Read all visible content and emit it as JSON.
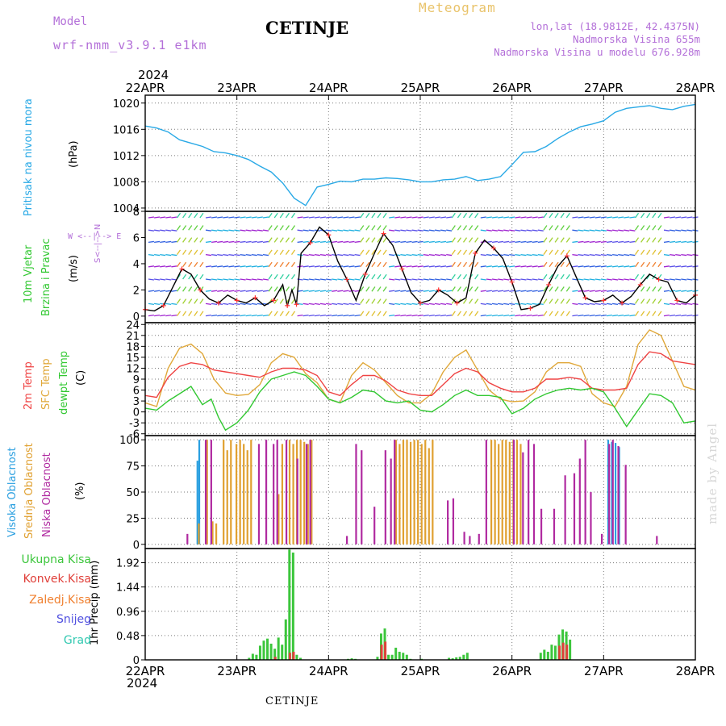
{
  "header": {
    "model_label": "Model",
    "model_name": "wrf-nmm_v3.9.1  e1km",
    "station": "CETINJE",
    "title": "Meteogram",
    "location": "lon,lat (18.9812E, 42.4375N)",
    "elevation": "Nadmorska Visina 655m",
    "model_elevation": "Nadmorska Visina u modelu 676.928m"
  },
  "footer": {
    "station": "CETINJE",
    "credit": "made by Angel"
  },
  "axis": {
    "year": "2024",
    "dates": [
      "22APR",
      "23APR",
      "24APR",
      "25APR",
      "26APR",
      "27APR",
      "28APR"
    ]
  },
  "colors": {
    "pressure": "#29a9e6",
    "temp": "#ef4444",
    "sfc": "#e0a83a",
    "dewpt": "#32c832",
    "high_cloud": "#2a9fe0",
    "mid_cloud": "#e0a030",
    "low_cloud": "#b02aa0",
    "total_precip": "#3cc63c",
    "convective": "#e0403a",
    "frozen": "#f08030",
    "snow": "#5050e0",
    "graupel": "#30c8b0",
    "ylab_pressure": "#29a9e6",
    "ylab_wind": "#32c832",
    "ylab_wind2": "#b36fd8"
  },
  "wind_compass": {
    "n": "N",
    "s": "S",
    "w": "W",
    "e": "E",
    "arrows": "<--|-->"
  },
  "charts": [
    {
      "name": "pressure",
      "type": "line",
      "ylabel": "Pritisak na nivou mora",
      "unit": "(hPa)",
      "ylim": [
        1003.5,
        1021.2
      ],
      "yticks": [
        1004,
        1008,
        1012,
        1016,
        1020
      ],
      "series": [
        {
          "color": "#29a9e6",
          "x": [
            0,
            0.125,
            0.25,
            0.375,
            0.5,
            0.625,
            0.75,
            0.875,
            1.0,
            1.125,
            1.25,
            1.375,
            1.5,
            1.625,
            1.75,
            1.875,
            2.0,
            2.125,
            2.25,
            2.375,
            2.5,
            2.625,
            2.75,
            2.875,
            3.0,
            3.125,
            3.25,
            3.375,
            3.5,
            3.625,
            3.75,
            3.875,
            4.0,
            4.125,
            4.25,
            4.375,
            4.5,
            4.625,
            4.75,
            4.875,
            5.0,
            5.125,
            5.25,
            5.375,
            5.5,
            5.625,
            5.75,
            5.875,
            6.0
          ],
          "y": [
            1016.5,
            1016.2,
            1015.6,
            1014.4,
            1013.9,
            1013.4,
            1012.6,
            1012.4,
            1012.0,
            1011.4,
            1010.4,
            1009.5,
            1007.8,
            1005.5,
            1004.4,
            1007.2,
            1007.6,
            1008.1,
            1008.0,
            1008.4,
            1008.4,
            1008.6,
            1008.5,
            1008.3,
            1008.0,
            1008.0,
            1008.3,
            1008.4,
            1008.8,
            1008.2,
            1008.4,
            1008.8,
            1010.6,
            1012.5,
            1012.6,
            1013.4,
            1014.6,
            1015.6,
            1016.4,
            1016.8,
            1017.3,
            1018.6,
            1019.2,
            1019.4,
            1019.6,
            1019.2,
            1019.0,
            1019.5,
            1019.8
          ]
        }
      ]
    },
    {
      "name": "wind",
      "type": "line",
      "ylabel": "10m Vjetar",
      "ylabel2": "Brzina i Pravac",
      "unit": "(m/s)",
      "ylim": [
        -0.5,
        8.0
      ],
      "yticks": [
        0,
        2,
        4,
        6,
        8
      ],
      "series": [
        {
          "color": "#000000",
          "x": [
            0,
            0.1,
            0.2,
            0.3,
            0.4,
            0.5,
            0.6,
            0.7,
            0.8,
            0.9,
            1.0,
            1.1,
            1.2,
            1.3,
            1.4,
            1.5,
            1.55,
            1.6,
            1.65,
            1.7,
            1.8,
            1.9,
            2.0,
            2.1,
            2.2,
            2.3,
            2.4,
            2.5,
            2.6,
            2.7,
            2.8,
            2.9,
            3.0,
            3.1,
            3.2,
            3.3,
            3.4,
            3.5,
            3.6,
            3.7,
            3.8,
            3.9,
            4.0,
            4.1,
            4.2,
            4.3,
            4.4,
            4.5,
            4.6,
            4.7,
            4.8,
            4.9,
            5.0,
            5.1,
            5.2,
            5.3,
            5.4,
            5.5,
            5.6,
            5.7,
            5.8,
            5.9,
            6.0
          ],
          "y": [
            0.5,
            0.4,
            0.8,
            2.2,
            3.6,
            3.2,
            2.0,
            1.3,
            1.0,
            1.6,
            1.2,
            1.0,
            1.4,
            0.8,
            1.2,
            2.4,
            0.8,
            2.0,
            0.9,
            4.8,
            5.6,
            6.8,
            6.2,
            4.2,
            2.8,
            1.2,
            3.2,
            4.8,
            6.3,
            5.4,
            3.6,
            1.8,
            1.0,
            1.2,
            2.0,
            1.6,
            1.0,
            1.4,
            4.8,
            5.8,
            5.2,
            4.4,
            2.6,
            0.5,
            0.6,
            0.9,
            2.4,
            3.8,
            4.6,
            3.0,
            1.4,
            1.1,
            1.2,
            1.6,
            1.0,
            1.5,
            2.4,
            3.2,
            2.8,
            2.6,
            1.2,
            1.0,
            1.6
          ]
        }
      ]
    },
    {
      "name": "temperature",
      "type": "line",
      "ylabel": "2m Temp",
      "ylabel2": "SFC Temp",
      "ylabel3": "dewpt Temp",
      "unit": "(C)",
      "ylim": [
        -6.5,
        24.5
      ],
      "yticks": [
        -6,
        -3,
        0,
        3,
        6,
        9,
        12,
        15,
        18,
        21,
        24
      ],
      "series": [
        {
          "color": "#e0a83a",
          "x": [
            0,
            0.125,
            0.25,
            0.375,
            0.5,
            0.625,
            0.75,
            0.875,
            1.0,
            1.125,
            1.25,
            1.375,
            1.5,
            1.625,
            1.75,
            1.875,
            2.0,
            2.125,
            2.25,
            2.375,
            2.5,
            2.625,
            2.75,
            2.875,
            3.0,
            3.125,
            3.25,
            3.375,
            3.5,
            3.625,
            3.75,
            3.875,
            4.0,
            4.125,
            4.25,
            4.375,
            4.5,
            4.625,
            4.75,
            4.875,
            5.0,
            5.125,
            5.25,
            5.375,
            5.5,
            5.625,
            5.75,
            5.875,
            6.0
          ],
          "y": [
            2.5,
            1.5,
            12.0,
            17.5,
            18.6,
            16.0,
            9.0,
            5.2,
            4.5,
            4.8,
            7.5,
            13.5,
            16.0,
            15.0,
            10.5,
            8.0,
            3.5,
            2.5,
            10.0,
            13.5,
            11.5,
            8.0,
            4.5,
            2.5,
            2.5,
            5.0,
            11.0,
            15.0,
            17.0,
            11.5,
            6.0,
            3.5,
            2.8,
            3.0,
            5.5,
            11.0,
            13.5,
            13.5,
            12.5,
            5.0,
            2.5,
            1.5,
            7.0,
            18.5,
            22.5,
            21.0,
            14.0,
            7.0,
            6.0
          ]
        },
        {
          "color": "#ef4444",
          "x": [
            0,
            0.125,
            0.25,
            0.375,
            0.5,
            0.625,
            0.75,
            0.875,
            1.0,
            1.125,
            1.25,
            1.375,
            1.5,
            1.625,
            1.75,
            1.875,
            2.0,
            2.125,
            2.25,
            2.375,
            2.5,
            2.625,
            2.75,
            2.875,
            3.0,
            3.125,
            3.25,
            3.375,
            3.5,
            3.625,
            3.75,
            3.875,
            4.0,
            4.125,
            4.25,
            4.375,
            4.5,
            4.625,
            4.75,
            4.875,
            5.0,
            5.125,
            5.25,
            5.375,
            5.5,
            5.625,
            5.75,
            5.875,
            6.0
          ],
          "y": [
            4.5,
            4.0,
            9.5,
            12.5,
            13.5,
            13.0,
            11.5,
            11.0,
            10.5,
            10.0,
            9.5,
            11.0,
            12.0,
            12.0,
            11.5,
            10.0,
            5.5,
            4.5,
            7.5,
            10.0,
            10.0,
            8.5,
            6.0,
            5.0,
            4.5,
            4.5,
            7.5,
            10.5,
            12.0,
            11.0,
            8.0,
            6.5,
            5.5,
            5.5,
            6.5,
            9.0,
            9.0,
            9.5,
            9.0,
            6.5,
            6.0,
            6.0,
            6.5,
            13.0,
            16.5,
            16.0,
            14.0,
            13.5,
            13.0
          ]
        },
        {
          "color": "#32c832",
          "x": [
            0,
            0.125,
            0.25,
            0.375,
            0.5,
            0.625,
            0.72,
            0.8,
            0.875,
            1.0,
            1.125,
            1.25,
            1.375,
            1.5,
            1.625,
            1.75,
            1.875,
            2.0,
            2.125,
            2.25,
            2.375,
            2.5,
            2.625,
            2.75,
            2.875,
            3.0,
            3.125,
            3.25,
            3.375,
            3.5,
            3.625,
            3.75,
            3.875,
            4.0,
            4.125,
            4.25,
            4.375,
            4.5,
            4.625,
            4.75,
            4.875,
            5.0,
            5.125,
            5.25,
            5.375,
            5.5,
            5.625,
            5.75,
            5.875,
            6.0
          ],
          "y": [
            1.0,
            0.5,
            3.0,
            5.0,
            7.0,
            2.0,
            3.5,
            -1.5,
            -5.0,
            -3.0,
            0.5,
            5.5,
            9.0,
            10.0,
            11.0,
            10.0,
            7.0,
            3.5,
            2.5,
            4.0,
            6.0,
            5.5,
            3.0,
            2.5,
            3.0,
            0.5,
            0.0,
            2.0,
            4.5,
            6.0,
            4.5,
            4.5,
            4.0,
            -0.5,
            1.0,
            3.5,
            5.0,
            6.0,
            6.5,
            6.0,
            6.5,
            5.5,
            1.0,
            -4.0,
            0.5,
            5.0,
            4.5,
            2.5,
            -3.0,
            -2.5
          ]
        }
      ]
    },
    {
      "name": "cloud",
      "type": "bar",
      "ylabel": "Visoka Oblacnost",
      "ylabel2": "Srednja Oblacnost",
      "ylabel3": "Niska Oblacnost",
      "unit": "(%)",
      "ylim": [
        -4,
        104
      ],
      "yticks": [
        0,
        25,
        50,
        75,
        100
      ],
      "series": [
        {
          "color": "#2a9fe0",
          "x": [
            0.56,
            0.58,
            5.04,
            5.08,
            5.12,
            5.16
          ],
          "y": [
            80,
            100,
            100,
            98,
            97,
            93
          ]
        },
        {
          "color": "#e0a030",
          "x": [
            0.57,
            0.66,
            0.72,
            0.76,
            0.84,
            0.88,
            0.92,
            0.98,
            1.02,
            1.06,
            1.1,
            1.14,
            1.44,
            1.48,
            1.56,
            1.6,
            1.64,
            1.68,
            1.72,
            1.76,
            1.8,
            2.72,
            2.76,
            2.8,
            2.84,
            2.88,
            2.92,
            2.96,
            3.0,
            3.04,
            3.08,
            3.12,
            3.76,
            3.8,
            3.84,
            3.88,
            3.92,
            3.96,
            4.0,
            4.04,
            4.08
          ],
          "y": [
            20,
            100,
            22,
            20,
            100,
            90,
            100,
            96,
            100,
            96,
            90,
            100,
            48,
            96,
            100,
            96,
            100,
            100,
            98,
            96,
            100,
            100,
            96,
            100,
            100,
            98,
            100,
            100,
            96,
            100,
            92,
            100,
            100,
            100,
            96,
            100,
            100,
            98,
            100,
            100,
            96
          ]
        },
        {
          "color": "#b02aa0",
          "x": [
            0.44,
            0.64,
            0.7,
            1.22,
            1.3,
            1.38,
            1.42,
            1.52,
            1.64,
            1.74,
            1.78,
            2.18,
            2.28,
            2.34,
            2.48,
            2.6,
            2.66,
            2.7,
            3.28,
            3.34,
            3.46,
            3.52,
            3.62,
            3.7,
            4.0,
            4.1,
            4.16,
            4.22,
            4.3,
            4.44,
            4.56,
            4.66,
            4.72,
            4.78,
            4.84,
            4.96,
            5.04,
            5.08,
            5.14,
            5.22,
            5.56
          ],
          "y": [
            10,
            100,
            100,
            96,
            100,
            96,
            100,
            100,
            82,
            96,
            100,
            8,
            96,
            90,
            36,
            90,
            82,
            100,
            42,
            44,
            12,
            8,
            10,
            100,
            100,
            88,
            100,
            96,
            34,
            34,
            66,
            68,
            82,
            100,
            50,
            10,
            96,
            100,
            94,
            76,
            8
          ]
        }
      ]
    },
    {
      "name": "precip",
      "type": "bar",
      "ylabel": "1hr Precip (mm)",
      "ylim": [
        0,
        2.2
      ],
      "yticks": [
        0,
        0.48,
        0.96,
        1.44,
        1.92
      ],
      "legend": [
        "Ukupna  Kisa",
        "Konvek.Kisa",
        "Zaledj.Kisa",
        "Snijeg",
        "Grad"
      ],
      "series": [
        {
          "color": "#3cc63c",
          "x": [
            1.12,
            1.16,
            1.2,
            1.24,
            1.28,
            1.32,
            1.36,
            1.4,
            1.44,
            1.48,
            1.52,
            1.56,
            1.6,
            1.64,
            1.68,
            2.2,
            2.24,
            2.28,
            2.52,
            2.56,
            2.6,
            2.64,
            2.68,
            2.72,
            2.76,
            2.8,
            2.84,
            2.88,
            3.0,
            3.3,
            3.34,
            3.38,
            3.42,
            3.46,
            3.5,
            4.3,
            4.34,
            4.38,
            4.42,
            4.46,
            4.5,
            4.54,
            4.58,
            4.62
          ],
          "y": [
            0.04,
            0.12,
            0.1,
            0.28,
            0.38,
            0.42,
            0.32,
            0.22,
            0.44,
            0.3,
            0.8,
            2.18,
            2.12,
            0.1,
            0.04,
            0.02,
            0.03,
            0.02,
            0.06,
            0.52,
            0.62,
            0.1,
            0.1,
            0.24,
            0.16,
            0.14,
            0.1,
            0.02,
            0.02,
            0.04,
            0.03,
            0.05,
            0.06,
            0.1,
            0.14,
            0.14,
            0.2,
            0.16,
            0.3,
            0.28,
            0.5,
            0.6,
            0.56,
            0.4
          ]
        },
        {
          "color": "#e0403a",
          "x": [
            1.4,
            1.56,
            1.6,
            2.56,
            2.6,
            4.5,
            4.54,
            4.58
          ],
          "y": [
            0.06,
            0.14,
            0.16,
            0.3,
            0.36,
            0.28,
            0.34,
            0.3
          ]
        }
      ]
    }
  ]
}
